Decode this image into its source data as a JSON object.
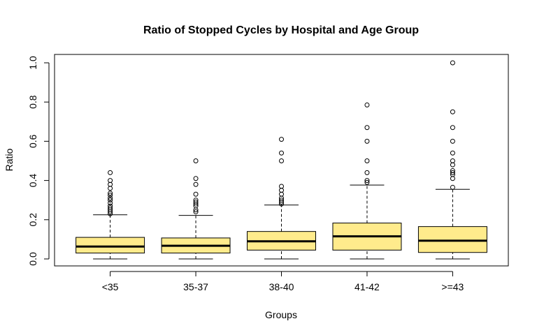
{
  "chart_data": {
    "type": "boxplot",
    "title": "Ratio of Stopped Cycles by Hospital and Age Group",
    "xlabel": "Groups",
    "ylabel": "Ratio",
    "ylim": [
      0,
      1.05
    ],
    "yticks": [
      "0.0",
      "0.2",
      "0.4",
      "0.6",
      "0.8",
      "1.0"
    ],
    "ytick_values": [
      0,
      0.2,
      0.4,
      0.6,
      0.8,
      1.0
    ],
    "categories": [
      "<35",
      "35-37",
      "38-40",
      "41-42",
      ">=43"
    ],
    "box_color": "#FFEB8C",
    "grid": false,
    "boxes": [
      {
        "min": 0.0,
        "q1": 0.03,
        "median": 0.063,
        "q3": 0.11,
        "max": 0.225,
        "outliers": [
          0.23,
          0.24,
          0.25,
          0.26,
          0.27,
          0.285,
          0.3,
          0.31,
          0.325,
          0.335,
          0.36,
          0.38,
          0.4,
          0.44
        ]
      },
      {
        "min": 0.0,
        "q1": 0.03,
        "median": 0.067,
        "q3": 0.107,
        "max": 0.222,
        "outliers": [
          0.24,
          0.25,
          0.27,
          0.28,
          0.29,
          0.3,
          0.33,
          0.38,
          0.41,
          0.5
        ]
      },
      {
        "min": 0.0,
        "q1": 0.045,
        "median": 0.09,
        "q3": 0.14,
        "max": 0.275,
        "outliers": [
          0.28,
          0.29,
          0.3,
          0.31,
          0.33,
          0.35,
          0.37,
          0.5,
          0.54,
          0.61
        ]
      },
      {
        "min": 0.0,
        "q1": 0.045,
        "median": 0.115,
        "q3": 0.183,
        "max": 0.377,
        "outliers": [
          0.39,
          0.4,
          0.44,
          0.5,
          0.6,
          0.67,
          0.785
        ]
      },
      {
        "min": 0.0,
        "q1": 0.033,
        "median": 0.093,
        "q3": 0.165,
        "max": 0.355,
        "outliers": [
          0.365,
          0.41,
          0.43,
          0.44,
          0.45,
          0.48,
          0.5,
          0.54,
          0.6,
          0.67,
          0.75,
          1.0
        ]
      }
    ]
  }
}
